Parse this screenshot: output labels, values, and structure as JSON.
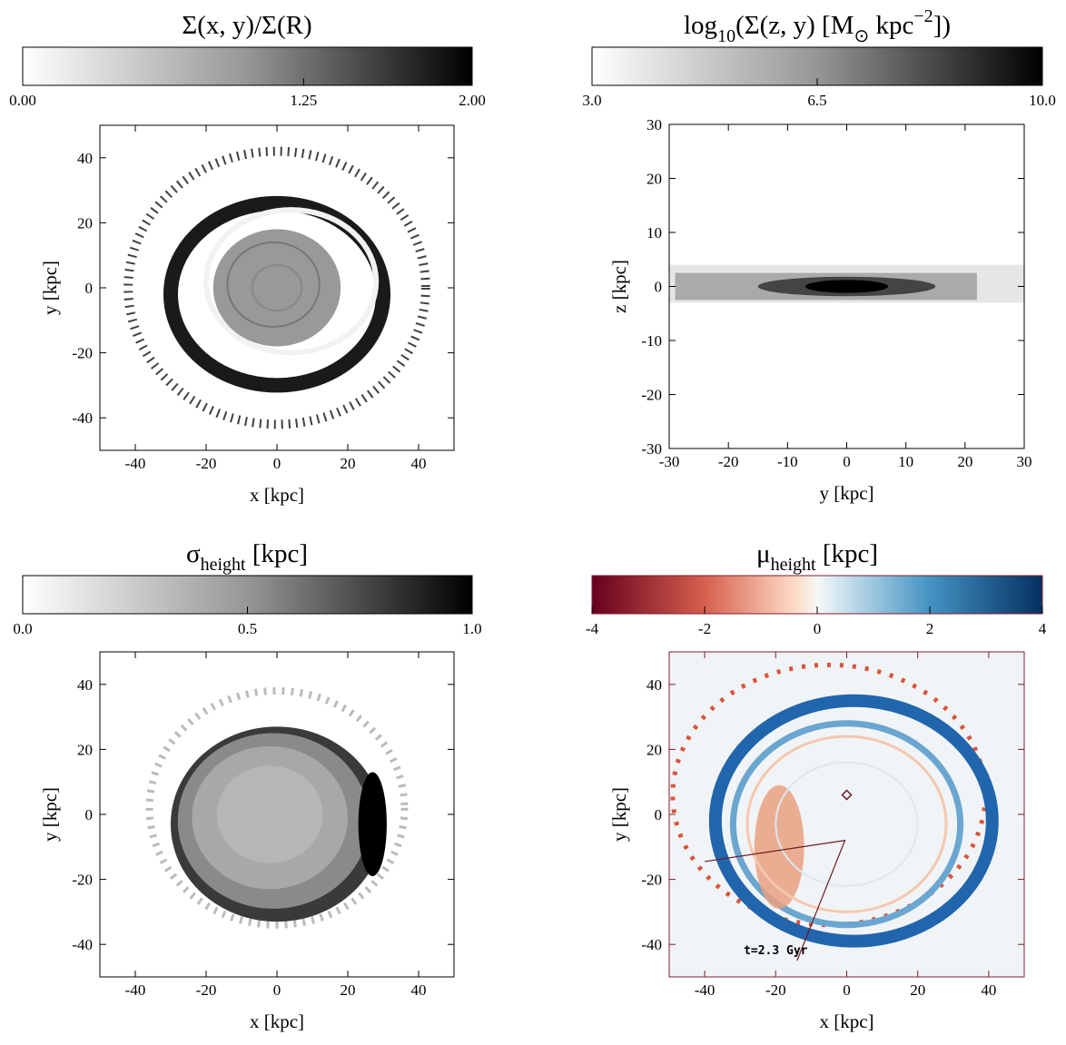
{
  "chart_data": [
    {
      "type": "heatmap",
      "colormap": "Greys",
      "title": [
        {
          "text": "Σ(x, y)/Σ(R)"
        }
      ],
      "xlabel": "x [kpc]",
      "ylabel": "y [kpc]",
      "xlim": [
        -50,
        50
      ],
      "ylim": [
        -50,
        50
      ],
      "xticks": [
        -40,
        -20,
        0,
        20,
        40
      ],
      "yticks": [
        -40,
        -20,
        0,
        20,
        40
      ],
      "clim": [
        0,
        2
      ],
      "cticks": [
        {
          "value": 0,
          "label": "0.00"
        },
        {
          "value": 1.25,
          "label": "1.25"
        },
        {
          "value": 2,
          "label": "2.00"
        }
      ]
    },
    {
      "type": "heatmap",
      "colormap": "Greys",
      "title": [
        {
          "text": "log"
        },
        {
          "text": "10",
          "sub": true
        },
        {
          "text": "(Σ(z, y) [M"
        },
        {
          "text": "⊙",
          "sub": true
        },
        {
          "text": " kpc"
        },
        {
          "text": "−2",
          "sup": true
        },
        {
          "text": "])"
        }
      ],
      "xlabel": "y [kpc]",
      "ylabel": "z [kpc]",
      "xlim": [
        -30,
        30
      ],
      "ylim": [
        -30,
        30
      ],
      "xticks": [
        -30,
        -20,
        -10,
        0,
        10,
        20,
        30
      ],
      "yticks": [
        -30,
        -20,
        -10,
        0,
        10,
        20,
        30
      ],
      "clim": [
        3,
        10
      ],
      "cticks": [
        {
          "value": 3,
          "label": "3.0"
        },
        6.5,
        {
          "value": 10,
          "label": "10.0"
        }
      ]
    },
    {
      "type": "heatmap",
      "colormap": "Greys",
      "title": [
        {
          "text": "σ"
        },
        {
          "text": "height",
          "sub": true
        },
        {
          "text": " [kpc]"
        }
      ],
      "xlabel": "x [kpc]",
      "ylabel": "y [kpc]",
      "xlim": [
        -50,
        50
      ],
      "ylim": [
        -50,
        50
      ],
      "xticks": [
        -40,
        -20,
        0,
        20,
        40
      ],
      "yticks": [
        -40,
        -20,
        0,
        20,
        40
      ],
      "clim": [
        0,
        1
      ],
      "cticks": [
        {
          "value": 0,
          "label": "0.0"
        },
        0.5,
        {
          "value": 1,
          "label": "1.0"
        }
      ]
    },
    {
      "type": "heatmap",
      "colormap": "RdBu",
      "title": [
        {
          "text": "μ"
        },
        {
          "text": "height",
          "sub": true
        },
        {
          "text": " [kpc]"
        }
      ],
      "xlabel": "x [kpc]",
      "ylabel": "y [kpc]",
      "xlim": [
        -50,
        50
      ],
      "ylim": [
        -50,
        50
      ],
      "xticks": [
        -40,
        -20,
        0,
        20,
        40
      ],
      "yticks": [
        -40,
        -20,
        0,
        20,
        40
      ],
      "clim": [
        -4,
        4
      ],
      "cticks": [
        -4,
        -2,
        0,
        2,
        4
      ],
      "annotation": "t=2.3 Gyr"
    }
  ]
}
